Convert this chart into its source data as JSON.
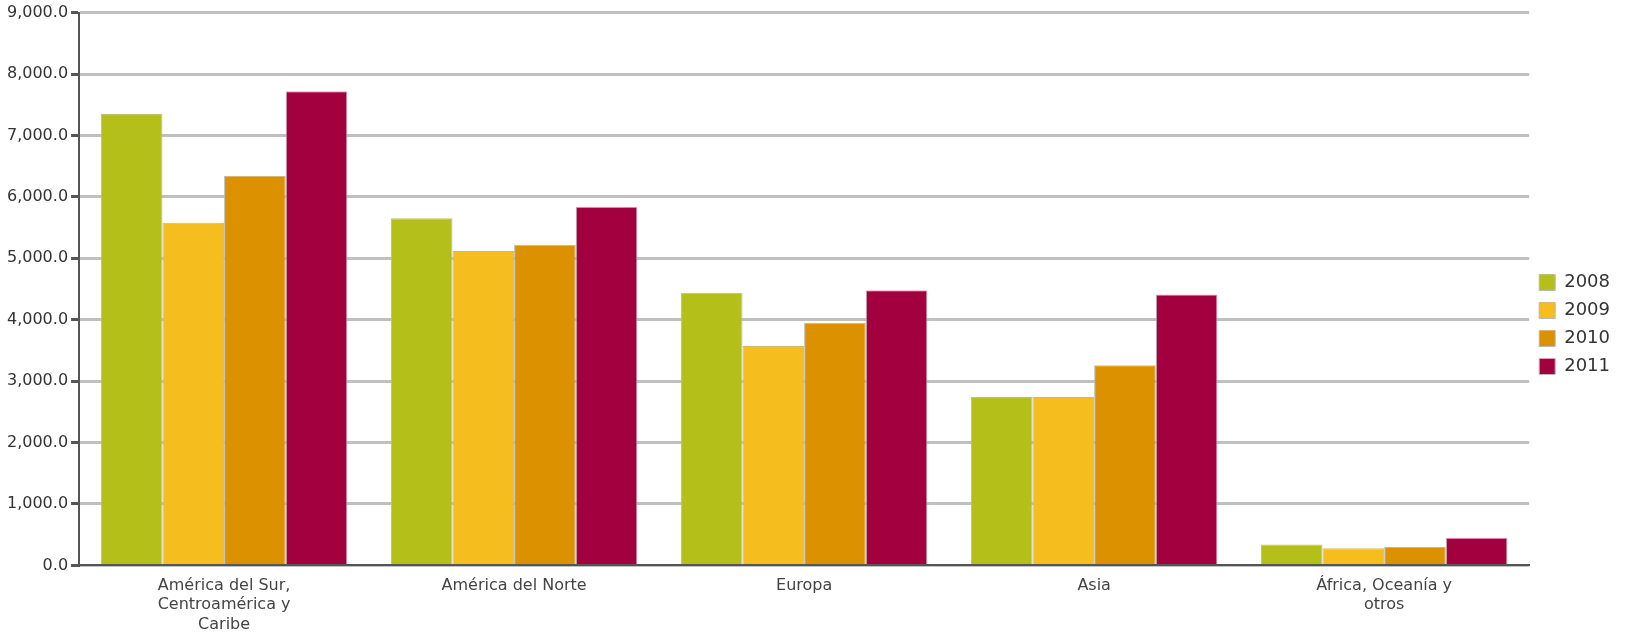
{
  "chart_data": {
    "type": "bar",
    "categories": [
      "América del Sur, Centroamérica y Caribe",
      "América del Norte",
      "Europa",
      "Asia",
      "África, Oceanía y otros"
    ],
    "series": [
      {
        "name": "2008",
        "color": "#b5bf1a",
        "values": [
          7350,
          5650,
          4440,
          2740,
          340
        ]
      },
      {
        "name": "2009",
        "color": "#f6bd1f",
        "values": [
          5580,
          5120,
          3570,
          2740,
          280
        ]
      },
      {
        "name": "2010",
        "color": "#dc9100",
        "values": [
          6340,
          5220,
          3950,
          3260,
          300
        ]
      },
      {
        "name": "2011",
        "color": "#a3003f",
        "values": [
          7720,
          5840,
          4480,
          4410,
          450
        ]
      }
    ],
    "ylim": [
      0,
      9000
    ],
    "yticks": [
      {
        "value": 0,
        "label": "0.0"
      },
      {
        "value": 1000,
        "label": "1,000.0"
      },
      {
        "value": 2000,
        "label": "2,000.0"
      },
      {
        "value": 3000,
        "label": "3,000.0"
      },
      {
        "value": 4000,
        "label": "4,000.0"
      },
      {
        "value": 5000,
        "label": "5,000.0"
      },
      {
        "value": 6000,
        "label": "6,000.0"
      },
      {
        "value": 7000,
        "label": "7,000.0"
      },
      {
        "value": 8000,
        "label": "8,000.0"
      },
      {
        "value": 9000,
        "label": "9,000.0"
      }
    ],
    "grid": "y",
    "legend": "right"
  }
}
